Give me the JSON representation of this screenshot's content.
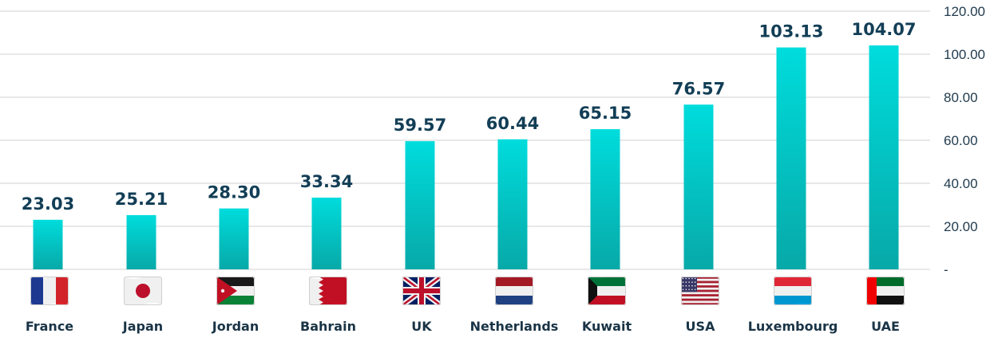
{
  "chart_data": {
    "type": "bar",
    "categories": [
      "France",
      "Japan",
      "Jordan",
      "Bahrain",
      "UK",
      "Netherlands",
      "Kuwait",
      "USA",
      "Luxembourg",
      "UAE"
    ],
    "values": [
      23.03,
      25.21,
      28.3,
      33.34,
      59.57,
      60.44,
      65.15,
      76.57,
      103.13,
      104.07
    ],
    "value_labels": [
      "23.03",
      "25.21",
      "28.30",
      "33.34",
      "59.57",
      "60.44",
      "65.15",
      "76.57",
      "103.13",
      "104.07"
    ],
    "flags": [
      "france-flag-icon",
      "japan-flag-icon",
      "jordan-flag-icon",
      "bahrain-flag-icon",
      "uk-flag-icon",
      "netherlands-flag-icon",
      "kuwait-flag-icon",
      "usa-flag-icon",
      "luxembourg-flag-icon",
      "uae-flag-icon"
    ],
    "ylim": [
      0,
      120
    ],
    "yticks": [
      0,
      20,
      40,
      60,
      80,
      100,
      120
    ],
    "ytick_labels": [
      "-",
      "20.00",
      "40.00",
      "60.00",
      "80.00",
      "100.00",
      "120.00"
    ],
    "y_axis_side": "right",
    "grid": true,
    "colors": {
      "bar_top": "#00dcdc",
      "bar_bottom": "#07a9a8",
      "value_text": "#123e56",
      "grid": "#d9d9d9"
    }
  }
}
